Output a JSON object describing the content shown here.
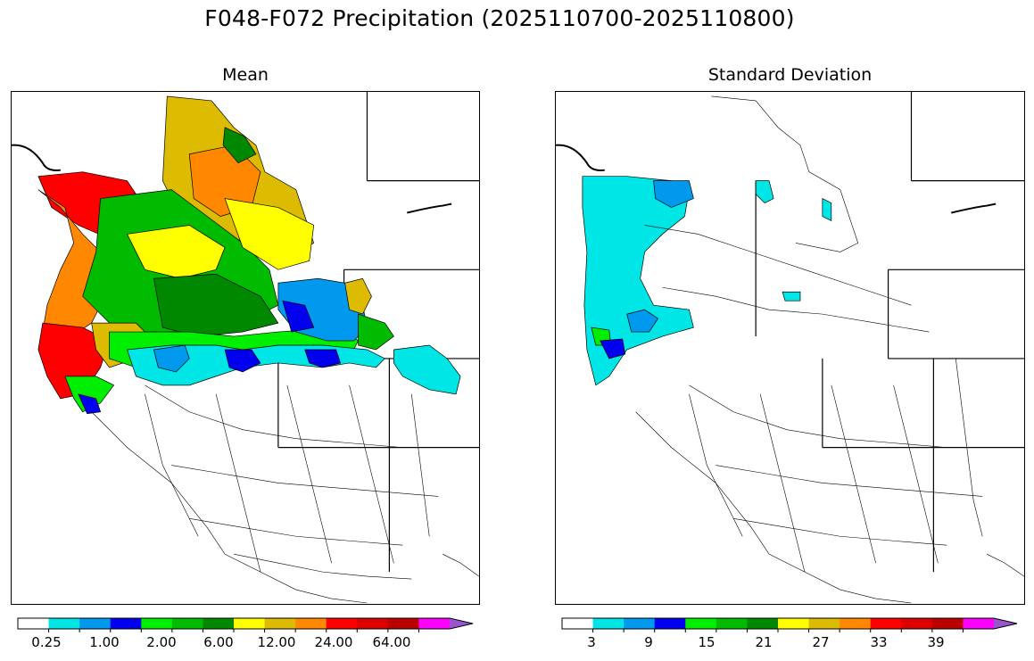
{
  "figure": {
    "title": "F048-F072 Precipitation (2025110700-2025110800)"
  },
  "panels": {
    "left": {
      "title": "Mean"
    },
    "right": {
      "title": "Standard Deviation"
    }
  },
  "colorbar": {
    "colors": [
      "#ffffff",
      "#00e5e5",
      "#0099ee",
      "#0000ee",
      "#00ee00",
      "#00bb00",
      "#008800",
      "#ffff00",
      "#ddbb00",
      "#ff8800",
      "#ff0000",
      "#dd0000",
      "#bb0000",
      "#ff00ff",
      "#9955cc"
    ],
    "left_ticks": [
      "0.25",
      "1.00",
      "2.00",
      "6.00",
      "12.00",
      "24.00",
      "64.00"
    ],
    "right_ticks": [
      "3",
      "9",
      "15",
      "21",
      "27",
      "33",
      "39"
    ]
  },
  "chart_data": [
    {
      "type": "choropleth",
      "title": "Mean",
      "region": "Western United States river basins",
      "legend_levels": [
        "0.25",
        "1.00",
        "2.00",
        "6.00",
        "12.00",
        "24.00",
        "64.00"
      ],
      "pattern": "Highest values (red, 24+) along Washington/Oregon coast and northern California coast; yellow/orange (6-24) across northern Idaho, Montana and interior Pacific Northwest; green (2-6) across Oregon and southern Idaho; blue/cyan (0.25-2) across northern Nevada, Utah and Wyoming; white (below 0.25) across the Southwest."
    },
    {
      "type": "choropleth",
      "title": "Standard Deviation",
      "region": "Western United States river basins",
      "legend_levels": [
        "3",
        "9",
        "15",
        "21",
        "27",
        "33",
        "39"
      ],
      "pattern": "Cyan (3-9) along the Pacific Northwest coast, western Oregon and parts of Idaho/Montana; small blue/green patches near the northern California coast; white elsewhere."
    }
  ]
}
